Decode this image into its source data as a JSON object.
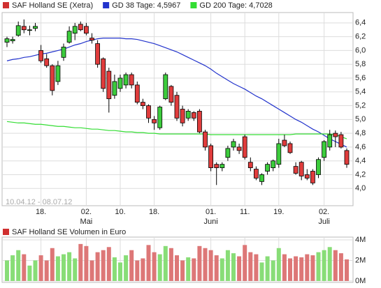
{
  "chart_data": [
    {
      "type": "candlestick",
      "name": "SAF Holland SE (Xetra)",
      "date_range": "10.04.12 - 08.07.12",
      "up_color": "#3ccc3c",
      "down_color": "#e03c3c",
      "name_color": "#d03030",
      "categories": [
        null,
        null,
        null,
        null,
        null,
        null,
        "18.",
        null,
        null,
        null,
        null,
        null,
        null,
        null,
        "02.",
        null,
        null,
        null,
        null,
        null,
        "10.",
        null,
        null,
        null,
        null,
        null,
        "18.",
        null,
        null,
        null,
        null,
        null,
        null,
        null,
        null,
        null,
        "01.",
        null,
        null,
        null,
        null,
        null,
        "11.",
        null,
        null,
        null,
        null,
        null,
        "19.",
        null,
        null,
        null,
        null,
        null,
        null,
        null,
        "02.",
        null,
        null,
        null,
        null
      ],
      "months": [
        null,
        null,
        null,
        null,
        null,
        null,
        null,
        null,
        null,
        null,
        null,
        null,
        null,
        null,
        "Mai",
        null,
        null,
        null,
        null,
        null,
        null,
        null,
        null,
        null,
        null,
        null,
        null,
        null,
        null,
        null,
        null,
        null,
        null,
        null,
        null,
        null,
        "Juni",
        null,
        null,
        null,
        null,
        null,
        null,
        null,
        null,
        null,
        null,
        null,
        null,
        null,
        null,
        null,
        null,
        null,
        null,
        null,
        "Juli",
        null,
        null,
        null,
        null
      ],
      "open": [
        6.12,
        6.14,
        6.22,
        6.35,
        6.3,
        6.32,
        6.0,
        5.88,
        5.78,
        5.55,
        5.9,
        6.12,
        6.25,
        6.38,
        6.35,
        6.18,
        6.1,
        5.88,
        5.7,
        5.35,
        5.45,
        5.5,
        5.65,
        5.5,
        5.25,
        5.2,
        5.0,
        4.88,
        5.3,
        5.48,
        5.35,
        5.15,
        5.02,
        5.1,
        5.12,
        4.82,
        4.62,
        4.35,
        4.3,
        4.45,
        4.6,
        4.6,
        4.75,
        4.38,
        4.28,
        4.1,
        4.25,
        4.3,
        4.35,
        4.7,
        4.65,
        4.32,
        4.38,
        4.2,
        4.25,
        4.2,
        4.45,
        4.6,
        4.8,
        4.78,
        4.55
      ],
      "high": [
        6.2,
        6.2,
        6.42,
        6.45,
        6.36,
        6.4,
        6.08,
        5.95,
        5.8,
        5.85,
        6.1,
        6.35,
        6.4,
        6.42,
        6.4,
        6.25,
        6.15,
        5.9,
        5.75,
        5.65,
        5.65,
        5.68,
        5.68,
        5.55,
        5.3,
        5.22,
        5.05,
        5.2,
        5.68,
        5.5,
        5.4,
        5.2,
        5.15,
        5.12,
        5.15,
        4.85,
        4.65,
        4.38,
        4.38,
        4.62,
        4.72,
        4.65,
        4.78,
        4.45,
        4.32,
        4.22,
        4.38,
        4.42,
        4.72,
        4.78,
        4.68,
        4.38,
        4.4,
        4.28,
        4.28,
        4.45,
        4.7,
        4.85,
        4.84,
        4.82,
        4.58
      ],
      "low": [
        6.05,
        6.1,
        6.2,
        6.25,
        6.22,
        6.28,
        5.82,
        5.75,
        5.35,
        5.5,
        5.85,
        6.1,
        6.15,
        6.28,
        6.22,
        6.1,
        5.75,
        5.4,
        5.1,
        5.3,
        5.4,
        5.45,
        5.45,
        5.22,
        5.15,
        4.95,
        4.85,
        4.85,
        5.28,
        5.2,
        4.98,
        4.9,
        4.98,
        4.98,
        4.8,
        4.55,
        4.25,
        4.05,
        4.25,
        4.4,
        4.55,
        4.5,
        4.42,
        4.25,
        4.12,
        4.05,
        4.2,
        4.25,
        4.3,
        4.6,
        4.5,
        4.2,
        4.12,
        4.12,
        4.05,
        4.15,
        4.4,
        4.55,
        4.6,
        4.58,
        4.3
      ],
      "close": [
        6.17,
        6.16,
        6.36,
        6.3,
        6.3,
        6.35,
        5.85,
        5.78,
        5.42,
        5.78,
        6.05,
        6.28,
        6.35,
        6.3,
        6.25,
        6.15,
        5.8,
        5.45,
        5.3,
        5.55,
        5.6,
        5.65,
        5.5,
        5.25,
        5.2,
        5.02,
        4.95,
        5.18,
        5.65,
        5.25,
        5.02,
        4.95,
        5.12,
        5.02,
        4.82,
        4.6,
        4.3,
        4.3,
        4.35,
        4.58,
        4.68,
        4.55,
        4.45,
        4.3,
        4.15,
        4.2,
        4.35,
        4.4,
        4.65,
        4.62,
        4.52,
        4.22,
        4.18,
        4.15,
        4.08,
        4.42,
        4.68,
        4.78,
        4.75,
        4.6,
        4.35
      ],
      "series": [
        {
          "name": "GD 38 Tage: 4,5967",
          "color": "#2233cc",
          "values": [
            5.85,
            5.87,
            5.88,
            5.9,
            5.91,
            5.93,
            5.95,
            5.96,
            5.98,
            6.0,
            6.02,
            6.05,
            6.08,
            6.1,
            6.13,
            6.15,
            6.17,
            6.18,
            6.18,
            6.18,
            6.18,
            6.17,
            6.17,
            6.16,
            6.14,
            6.12,
            6.1,
            6.07,
            6.04,
            6.01,
            5.98,
            5.94,
            5.9,
            5.86,
            5.82,
            5.78,
            5.73,
            5.67,
            5.62,
            5.57,
            5.52,
            5.48,
            5.44,
            5.39,
            5.34,
            5.3,
            5.25,
            5.2,
            5.15,
            5.1,
            5.05,
            5.0,
            4.96,
            4.91,
            4.86,
            4.82,
            4.77,
            4.72,
            4.68,
            4.64,
            4.6
          ]
        },
        {
          "name": "GD 200 Tage: 4,7028",
          "color": "#33dd33",
          "values": [
            4.97,
            4.96,
            4.95,
            4.95,
            4.94,
            4.93,
            4.93,
            4.92,
            4.91,
            4.9,
            4.9,
            4.89,
            4.88,
            4.88,
            4.87,
            4.86,
            4.86,
            4.85,
            4.84,
            4.84,
            4.83,
            4.82,
            4.82,
            4.81,
            4.81,
            4.8,
            4.8,
            4.79,
            4.79,
            4.79,
            4.79,
            4.79,
            4.79,
            4.79,
            4.79,
            4.79,
            4.78,
            4.78,
            4.78,
            4.78,
            4.78,
            4.78,
            4.78,
            4.78,
            4.78,
            4.78,
            4.78,
            4.78,
            4.78,
            4.78,
            4.78,
            4.79,
            4.79,
            4.79,
            4.79,
            4.79,
            4.79,
            4.79,
            4.78,
            4.75,
            4.72
          ]
        }
      ],
      "ylim": [
        3.75,
        6.55
      ],
      "yticks": [
        {
          "value": 4.0,
          "label": "4,0"
        },
        {
          "value": 4.2,
          "label": "4,2"
        },
        {
          "value": 4.4,
          "label": "4,4"
        },
        {
          "value": 4.6,
          "label": "4,6"
        },
        {
          "value": 4.8,
          "label": "4,8"
        },
        {
          "value": 5.0,
          "label": "5,0"
        },
        {
          "value": 5.2,
          "label": "5,2"
        },
        {
          "value": 5.4,
          "label": "5,4"
        },
        {
          "value": 5.6,
          "label": "5,6"
        },
        {
          "value": 5.8,
          "label": "5,8"
        },
        {
          "value": 6.0,
          "label": "6,0"
        },
        {
          "value": 6.2,
          "label": "6,2"
        },
        {
          "value": 6.4,
          "label": "6,4"
        }
      ],
      "grid": true
    },
    {
      "type": "bar",
      "title": "SAF Holland SE Volumen in Euro",
      "values": [
        2.0,
        2.5,
        3.0,
        2.6,
        1.5,
        2.0,
        2.5,
        2.0,
        3.2,
        2.4,
        2.6,
        2.8,
        2.2,
        3.6,
        3.4,
        2.0,
        2.8,
        3.0,
        3.3,
        2.3,
        1.8,
        2.5,
        3.0,
        2.0,
        2.2,
        3.5,
        2.8,
        2.6,
        3.4,
        3.2,
        2.5,
        2.0,
        2.3,
        2.2,
        3.4,
        3.2,
        3.0,
        2.5,
        2.2,
        3.0,
        2.7,
        2.4,
        3.5,
        2.8,
        2.6,
        1.8,
        2.4,
        2.0,
        3.2,
        2.6,
        2.2,
        2.4,
        2.3,
        2.6,
        2.5,
        2.8,
        3.0,
        3.3,
        3.0,
        2.7,
        2.1
      ],
      "up_color": "#88dd77",
      "down_color": "#dd7777",
      "ylim": [
        -0.14,
        4.27
      ],
      "yticks": [
        {
          "value": 0,
          "label": "0M"
        },
        {
          "value": 2,
          "label": "2M"
        },
        {
          "value": 4,
          "label": "4M"
        }
      ],
      "grid": true
    }
  ]
}
